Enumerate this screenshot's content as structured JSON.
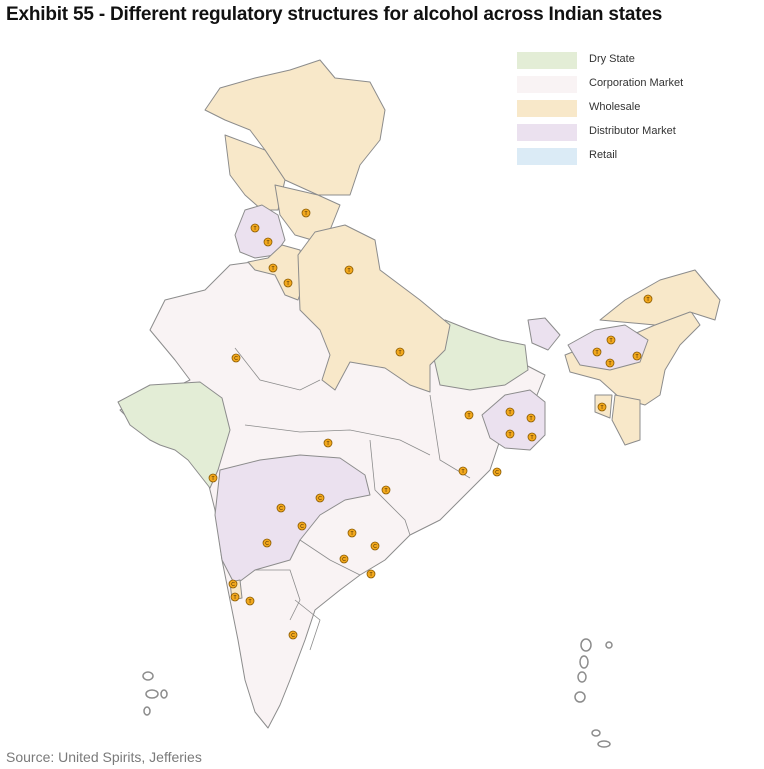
{
  "title": "Exhibit 55 - Different regulatory structures for alcohol across Indian states",
  "source": "Source: United Spirits, Jefferies",
  "legend": [
    {
      "label": "Dry State",
      "color": "#e3edd6"
    },
    {
      "label": "Corporation Market",
      "color": "#f9f3f4"
    },
    {
      "label": "Wholesale",
      "color": "#f8e8c9"
    },
    {
      "label": "Distributor Market",
      "color": "#ebe1ef"
    },
    {
      "label": "Retail",
      "color": "#dbebf6"
    }
  ],
  "colors": {
    "border": "#8c8c8c",
    "marker_fill": "#f2a81d",
    "marker_stroke": "#8a5a00",
    "marker_text": "#3b2400"
  },
  "markers": {
    "T": "T",
    "C": "C"
  }
}
